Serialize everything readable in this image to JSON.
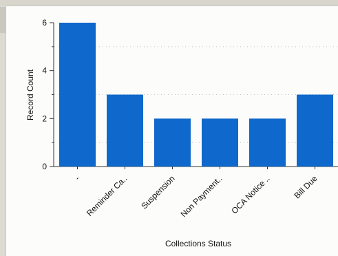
{
  "chart_data": {
    "type": "bar",
    "categories": [
      "-",
      "Reminder Ca..",
      "Suspension",
      "Non Payment..",
      "OCA Notice ..",
      "Bill Due"
    ],
    "values": [
      6,
      3,
      2,
      2,
      2,
      3
    ],
    "xlabel": "Collections Status",
    "ylabel": "Record Count",
    "ylim": [
      0,
      6
    ],
    "yticks": [
      0,
      2,
      4,
      6
    ],
    "bar_color": "#0f68cc",
    "grid": true
  }
}
